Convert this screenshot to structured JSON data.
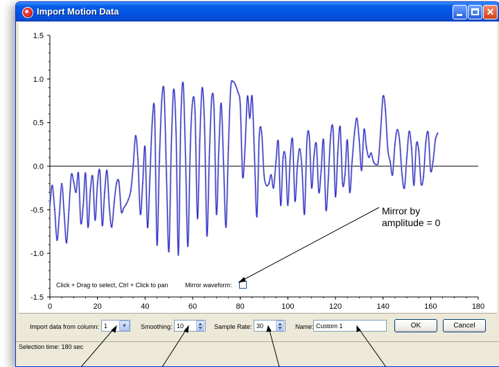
{
  "window": {
    "title": "Import Motion Data",
    "accent": "#0054e3",
    "background": "#ece9d8"
  },
  "graph": {
    "hint": "Click + Drag to select, Ctrl + Click to pan",
    "mirror_label": "Mirror waveform:",
    "mirror_checked": false,
    "callout": "Mirror by\namplitude = 0",
    "line_color": "#2b2bd9"
  },
  "chart_data": {
    "type": "line",
    "title": "",
    "xlabel": "",
    "ylabel": "",
    "xlim": [
      0,
      180
    ],
    "ylim": [
      -1.5,
      1.5
    ],
    "x_ticks": [
      "0",
      "20",
      "40",
      "60",
      "80",
      "100",
      "120",
      "140",
      "160",
      "180"
    ],
    "y_ticks": [
      "1.5",
      "1.0",
      "0.5",
      "0.0",
      "-0.5",
      "-1.0",
      "-1.5"
    ],
    "zero_line": 0,
    "grid": false,
    "legend": "none",
    "series": [
      {
        "x": [
          0,
          1,
          2,
          3,
          4,
          5,
          6,
          7,
          8,
          9,
          10,
          11,
          12,
          13,
          14,
          15,
          16,
          17,
          18,
          19,
          20,
          21,
          22,
          23,
          24,
          25,
          26,
          27,
          28,
          29,
          30,
          31,
          32,
          33,
          34,
          35,
          36,
          37,
          38,
          39,
          40,
          41,
          42,
          43,
          44,
          45,
          46,
          47,
          48,
          49,
          50,
          51,
          52,
          53,
          54,
          55,
          56,
          57,
          58,
          59,
          60,
          61,
          62,
          63,
          64,
          65,
          66,
          67,
          68,
          69,
          70,
          71,
          72,
          73,
          74,
          75,
          76,
          77,
          78,
          79,
          80,
          81,
          82,
          83,
          84,
          85,
          86,
          87,
          88,
          89,
          90,
          91,
          92,
          93,
          94,
          95,
          96,
          97,
          98,
          99,
          100,
          101,
          102,
          103,
          104,
          105,
          106,
          107,
          108,
          109,
          110,
          111,
          112,
          113,
          114,
          115,
          116,
          117,
          118,
          119,
          120,
          121,
          122,
          123,
          124,
          125,
          126,
          127,
          128,
          129,
          130,
          131,
          132,
          133,
          134,
          135,
          136,
          137,
          138,
          139,
          140,
          141,
          142,
          143,
          144,
          145,
          146,
          147,
          148,
          149,
          150,
          151,
          152,
          153,
          154,
          155,
          156,
          157,
          158,
          159,
          160,
          161,
          162,
          163
        ],
        "y": [
          -0.45,
          -0.22,
          -0.5,
          -0.85,
          -0.55,
          -0.2,
          -0.55,
          -0.88,
          -0.5,
          -0.1,
          -0.18,
          -0.3,
          -0.08,
          -0.65,
          -0.45,
          -0.08,
          -0.7,
          -0.28,
          -0.12,
          -0.62,
          -0.2,
          -0.06,
          -0.68,
          -0.3,
          -0.05,
          -0.48,
          -0.7,
          -0.42,
          -0.2,
          -0.18,
          -0.52,
          -0.48,
          -0.44,
          -0.38,
          -0.28,
          0.0,
          0.35,
          0.08,
          -0.55,
          -0.2,
          0.22,
          -0.7,
          -0.15,
          0.5,
          0.62,
          -0.9,
          0.05,
          0.75,
          0.85,
          -0.1,
          -0.98,
          0.2,
          0.88,
          0.4,
          -1.02,
          0.5,
          0.95,
          0.1,
          -0.92,
          0.22,
          0.75,
          0.62,
          -0.6,
          0.3,
          0.9,
          0.45,
          -0.8,
          0.1,
          0.78,
          0.65,
          -0.55,
          0.2,
          0.72,
          0.02,
          -0.7,
          0.2,
          0.9,
          0.97,
          0.93,
          0.85,
          0.7,
          -0.12,
          0.2,
          0.8,
          0.55,
          0.8,
          0.1,
          -0.58,
          0.35,
          0.38,
          -0.1,
          -0.22,
          -0.2,
          -0.1,
          -0.25,
          0.05,
          0.28,
          -0.45,
          0.1,
          0.1,
          -0.45,
          0.1,
          0.3,
          -0.4,
          0.0,
          0.2,
          -0.05,
          -0.55,
          0.28,
          0.35,
          -0.25,
          0.12,
          0.25,
          -0.3,
          -0.05,
          0.3,
          -0.5,
          -0.15,
          0.35,
          0.42,
          -0.35,
          0.15,
          0.45,
          -0.2,
          -0.1,
          0.3,
          -0.3,
          0.05,
          0.38,
          0.55,
          0.3,
          -0.05,
          0.42,
          0.22,
          0.1,
          0.15,
          0.05,
          0.02,
          0.05,
          0.4,
          0.8,
          0.65,
          0.2,
          0.05,
          -0.1,
          0.25,
          0.42,
          0.28,
          -0.1,
          -0.25,
          0.1,
          0.4,
          0.2,
          -0.22,
          0.25,
          0.18,
          -0.2,
          -0.12,
          0.28,
          0.38,
          -0.05,
          0.05,
          0.3,
          0.38
        ]
      }
    ]
  },
  "controls": {
    "column_label": "Import data from column:",
    "column_value": "1",
    "smoothing_label": "Smoothing:",
    "smoothing_value": "10",
    "sample_rate_label": "Sample Rate:",
    "sample_rate_value": "30",
    "name_label": "Name:",
    "name_value": "Custom 1",
    "ok_label": "OK",
    "cancel_label": "Cancel"
  },
  "status": {
    "text": "Selection time: 180 sec"
  }
}
